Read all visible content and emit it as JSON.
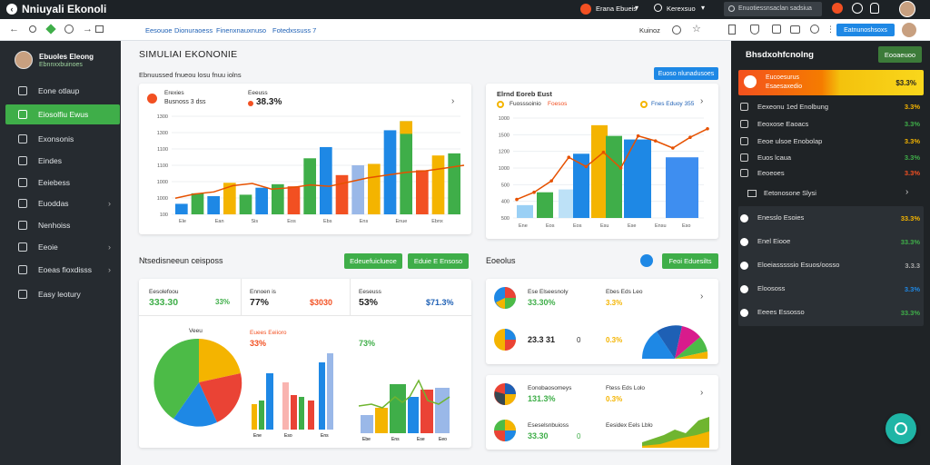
{
  "topbar": {
    "title": "Nniuyali Ekonoli",
    "account": "Erana Ebueis",
    "menu": "Kerexsuo",
    "search_placeholder": "Enuotiessnsaclan sadsiua"
  },
  "navbar": {
    "tabs": [
      "Eesouoe",
      "Dionuraoess",
      "Finenxnauxnuso",
      "Fotedxssuss 7"
    ],
    "right_label": "Kuinoz",
    "action_button": "Eatnunoshsoxs"
  },
  "sidebar": {
    "user_name": "Ebuoles Eleong",
    "user_sub": "Ebnnxxbuinoes",
    "items": [
      {
        "label": "Eone otlaup",
        "active": false,
        "chev": false
      },
      {
        "label": "Eiosolfiu Ewus",
        "active": true,
        "chev": false
      },
      {
        "label": "Exonsonis",
        "active": false,
        "chev": false
      },
      {
        "label": "Eindes",
        "active": false,
        "chev": false
      },
      {
        "label": "Eeiebess",
        "active": false,
        "chev": false
      },
      {
        "label": "Euoddas",
        "active": false,
        "chev": true
      },
      {
        "label": "Nenhoiss",
        "active": false,
        "chev": false
      },
      {
        "label": "Eeoie",
        "active": false,
        "chev": true
      },
      {
        "label": "Eoeas fioxdisss",
        "active": false,
        "chev": true
      },
      {
        "label": "Easy leotury",
        "active": false,
        "chev": false
      }
    ]
  },
  "main": {
    "title": "SIMULIAI EKONONIE",
    "subtitle": "Ebnuussed fnueou losu fnuu iolns",
    "filter_button": "Euoso nlunadusoes",
    "card1": {
      "label1": "Erexies",
      "sub1": "Busnoss 3 dss",
      "label2": "Eeeuss",
      "value": "38.3%",
      "ticks": [
        "1300",
        "1300",
        "1100",
        "1100",
        "1000",
        "1000",
        "100"
      ],
      "xlabels": [
        "Ele",
        "Ean",
        "Sis",
        "Eos",
        "Ebs",
        "Ens",
        "Enue",
        "Ebnx"
      ],
      "bars": [
        {
          "x": 0,
          "v": 150,
          "c": "#1e88e5",
          "t": 0
        },
        {
          "x": 1,
          "v": 300,
          "c": "#3fae49",
          "t": 0
        },
        {
          "x": 2,
          "v": 260,
          "c": "#1e88e5",
          "t": 0
        },
        {
          "x": 3,
          "v": 450,
          "c": "#f4b400",
          "t": 0
        },
        {
          "x": 4,
          "v": 280,
          "c": "#3fae49",
          "t": 0
        },
        {
          "x": 5,
          "v": 380,
          "c": "#1e88e5",
          "t": 0
        },
        {
          "x": 6,
          "v": 430,
          "c": "#3fae49",
          "t": 0
        },
        {
          "x": 7,
          "v": 400,
          "c": "#f25022",
          "t": 0
        },
        {
          "x": 8,
          "v": 800,
          "c": "#3fae49",
          "t": 0
        },
        {
          "x": 9,
          "v": 960,
          "c": "#1e88e5",
          "t": 0
        },
        {
          "x": 10,
          "v": 560,
          "c": "#f25022",
          "t": 0
        },
        {
          "x": 11,
          "v": 700,
          "c": "#9ab8e8",
          "t": 0
        },
        {
          "x": 12,
          "v": 720,
          "c": "#f4b400",
          "t": 0
        },
        {
          "x": 13,
          "v": 1200,
          "c": "#1e88e5",
          "t": 0
        },
        {
          "x": 14,
          "v": 1330,
          "c": "#3fae49",
          "t": 1
        },
        {
          "x": 15,
          "v": 630,
          "c": "#f25022",
          "t": 0
        },
        {
          "x": 16,
          "v": 840,
          "c": "#f4b400",
          "t": 0
        },
        {
          "x": 17,
          "v": 870,
          "c": "#3fae49",
          "t": 0
        }
      ],
      "line": [
        230,
        290,
        320,
        410,
        440,
        360,
        380,
        420,
        400,
        460,
        520,
        560,
        600,
        620,
        660,
        700
      ]
    },
    "card2": {
      "title": "Elrnd Eoreb Eust",
      "legend": [
        "Fuosssoinio",
        "Foesos"
      ],
      "legend_b": "Fnes Eduoy 355",
      "ticks": [
        "1000",
        "1500",
        "1200",
        "1000",
        "500",
        "400",
        "500"
      ],
      "xlabels": [
        "Ene",
        "Eos",
        "Eos",
        "Esu",
        "Ese",
        "Ensu",
        "Eso"
      ],
      "bars": [
        {
          "v": 180,
          "c": "#9ad0f5"
        },
        {
          "v": 360,
          "c": "#3fae49"
        },
        {
          "v": 400,
          "c": "#bde1f7"
        },
        {
          "v": 900,
          "c": "#1e88e5"
        },
        {
          "v": 1300,
          "c": "#f4b400"
        },
        {
          "v": 1150,
          "c": "#3fae49"
        },
        {
          "v": 1100,
          "c": "#1e88e5"
        },
        {
          "v": 850,
          "c": "#3e8ef0"
        }
      ],
      "line": [
        260,
        360,
        520,
        850,
        720,
        920,
        700,
        1150,
        1080,
        980,
        1130,
        1250
      ]
    },
    "section2_title": "Ntsedisneeun ceisposs",
    "btn_a": "Edeuefuiclueoe",
    "btn_b": "Eduie E Ensoso",
    "card3": {
      "stats": [
        {
          "label": "Eesolefoou",
          "value": "333.30",
          "pct": "33%"
        },
        {
          "label": "Ennoen is",
          "value": "77%",
          "pct": "$3030"
        },
        {
          "label": "Eeseuss",
          "value": "53%",
          "pct": "$71.3%"
        }
      ],
      "pie_title": "Veeu",
      "mid_title": "Euees Eeiioro",
      "mid_value": "33%",
      "right_value": "73%",
      "xlabels_mid": [
        "Ene",
        "Eso",
        "Ens"
      ],
      "xlabels_right": [
        "Ebe",
        "Ens",
        "Ese",
        "Eeo"
      ]
    },
    "section3_title": "Eoeolus",
    "btn_c": "Feoi Eduesilts",
    "card4": {
      "r1": {
        "label": "Ese Elseesnoly",
        "value": "33.30%",
        "label2": "Ebes Eds Leo",
        "value2": "3.3%"
      },
      "r2": {
        "label": "",
        "value": "23.3 31",
        "small": "0",
        "value2": "0.3%"
      }
    },
    "card5": {
      "r1": {
        "label": "Eonobaosomeys",
        "value": "131.3%",
        "label2": "Ftess Eds Lolo",
        "value2": "0.3%"
      },
      "r2": {
        "label": "Eseselsnbuioss",
        "value": "33.30",
        "small": "0",
        "label2": "Eesidex Eels Lblo"
      }
    }
  },
  "rpanel": {
    "title": "Bhsdxohfcnolng",
    "top_button": "Eooaeuoo",
    "feature": {
      "title": "Eucoesurus",
      "sub": "Esaesaxedio",
      "value": "$3.3%"
    },
    "rows": [
      {
        "label": "Eexeonu 1ed Enolbung",
        "value": "3.3%",
        "color": "#f4b400"
      },
      {
        "label": "Eeoxose Eaoacs",
        "value": "3.3%",
        "color": "#3fae49"
      },
      {
        "label": "Eeoe ulsoe Enobolap",
        "value": "3.3%",
        "color": "#f4b400"
      },
      {
        "label": "Euos lcaua",
        "value": "3.3%",
        "color": "#3fae49"
      },
      {
        "label": "Eeoeoes",
        "value": "3.3%",
        "color": "#f25022"
      }
    ],
    "subhead": "Eetonosone Slysi",
    "rows2": [
      {
        "label": "Enesslo Esoies",
        "value": "33.3%",
        "color": "#f4b400"
      },
      {
        "label": "Enel Eiooe",
        "value": "33.3%",
        "color": "#3fae49"
      },
      {
        "label": "Eloeiasssssio\nEsuos/oosso",
        "value": "3.3.3",
        "color": "#aaaaaa"
      },
      {
        "label": "Eloososs",
        "value": "3.3%",
        "color": "#1e88e5"
      },
      {
        "label": "Eeees Essosso",
        "value": "33.3%",
        "color": "#3fae49"
      }
    ]
  }
}
